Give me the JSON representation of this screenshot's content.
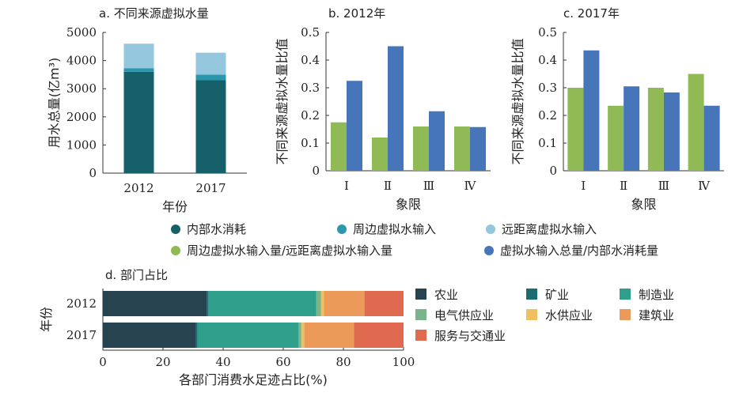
{
  "colors": {
    "internal": "#16606a",
    "nearby": "#2b97ad",
    "distant": "#94c6de",
    "ratio_nearby_distant": "#8fba55",
    "ratio_total_internal": "#4675b9",
    "agriculture": "#27434f",
    "mining": "#1c6a72",
    "manufacturing": "#2f9e8a",
    "electricity": "#7bb48c",
    "water": "#f0c060",
    "construction": "#eb9a5a",
    "services": "#df6a50"
  },
  "legend_top": [
    {
      "label": "内部水消耗",
      "color_key": "internal",
      "shape": "dot"
    },
    {
      "label": "周边虚拟水输入",
      "color_key": "nearby",
      "shape": "dot"
    },
    {
      "label": "远距离虚拟水输入",
      "color_key": "distant",
      "shape": "dot"
    },
    {
      "label": "周边虚拟水输入量/远距离虚拟水输入量",
      "color_key": "ratio_nearby_distant",
      "shape": "dot"
    },
    {
      "label": "虚拟水输入总量/内部水消耗量",
      "color_key": "ratio_total_internal",
      "shape": "dot"
    }
  ],
  "chart_data": [
    {
      "id": "a",
      "type": "bar",
      "stacked": true,
      "title": "a. 不同来源虚拟水量",
      "xlabel": "年份",
      "ylabel": "用水总量(亿m³)",
      "ylim": [
        0,
        5000
      ],
      "yticks": [
        "0",
        "1000",
        "2000",
        "3000",
        "4000",
        "5000"
      ],
      "categories": [
        "2012",
        "2017"
      ],
      "series": [
        {
          "name": "内部水消耗",
          "color_key": "internal",
          "values": [
            3600,
            3300
          ]
        },
        {
          "name": "周边虚拟水输入",
          "color_key": "nearby",
          "values": [
            130,
            200
          ]
        },
        {
          "name": "远距离虚拟水输入",
          "color_key": "distant",
          "values": [
            870,
            780
          ]
        }
      ]
    },
    {
      "id": "b",
      "type": "bar",
      "title": "b. 2012年",
      "xlabel": "象限",
      "ylabel": "不同来源虚拟水量比值",
      "ylim": [
        0,
        0.5
      ],
      "yticks": [
        "0",
        "0.1",
        "0.2",
        "0.3",
        "0.4",
        "0.5"
      ],
      "categories": [
        "Ⅰ",
        "Ⅱ",
        "Ⅲ",
        "Ⅳ"
      ],
      "series": [
        {
          "name": "周边虚拟水输入量/远距离虚拟水输入量",
          "color_key": "ratio_nearby_distant",
          "values": [
            0.175,
            0.12,
            0.16,
            0.16
          ]
        },
        {
          "name": "虚拟水输入总量/内部水消耗量",
          "color_key": "ratio_total_internal",
          "values": [
            0.325,
            0.45,
            0.215,
            0.158
          ]
        }
      ]
    },
    {
      "id": "c",
      "type": "bar",
      "title": "c. 2017年",
      "xlabel": "象限",
      "ylabel": "不同来源虚拟水量比值",
      "ylim": [
        0,
        0.5
      ],
      "yticks": [
        "0",
        "0.1",
        "0.2",
        "0.3",
        "0.4",
        "0.5"
      ],
      "categories": [
        "Ⅰ",
        "Ⅱ",
        "Ⅲ",
        "Ⅳ"
      ],
      "series": [
        {
          "name": "周边虚拟水输入量/远距离虚拟水输入量",
          "color_key": "ratio_nearby_distant",
          "values": [
            0.3,
            0.235,
            0.3,
            0.35
          ]
        },
        {
          "name": "虚拟水输入总量/内部水消耗量",
          "color_key": "ratio_total_internal",
          "values": [
            0.435,
            0.305,
            0.283,
            0.235
          ]
        }
      ]
    },
    {
      "id": "d",
      "type": "bar",
      "orientation": "horizontal",
      "stacked": true,
      "title": "d. 部门占比",
      "xlabel": "各部门消费水足迹占比(%)",
      "ylabel": "年份",
      "xlim": [
        0,
        100
      ],
      "xticks": [
        "0",
        "20",
        "40",
        "60",
        "80",
        "100"
      ],
      "categories": [
        "2012",
        "2017"
      ],
      "series": [
        {
          "name": "农业",
          "color_key": "agriculture",
          "values": [
            34.5,
            31
          ]
        },
        {
          "name": "矿业",
          "color_key": "mining",
          "values": [
            0.5,
            0.5
          ]
        },
        {
          "name": "制造业",
          "color_key": "manufacturing",
          "values": [
            36,
            33.5
          ]
        },
        {
          "name": "电气供应业",
          "color_key": "electricity",
          "values": [
            1.5,
            1
          ]
        },
        {
          "name": "水供应业",
          "color_key": "water",
          "values": [
            1,
            1
          ]
        },
        {
          "name": "建筑业",
          "color_key": "construction",
          "values": [
            13.5,
            16.5
          ]
        },
        {
          "name": "服务与交通业",
          "color_key": "services",
          "values": [
            13,
            16.5
          ]
        }
      ]
    }
  ]
}
